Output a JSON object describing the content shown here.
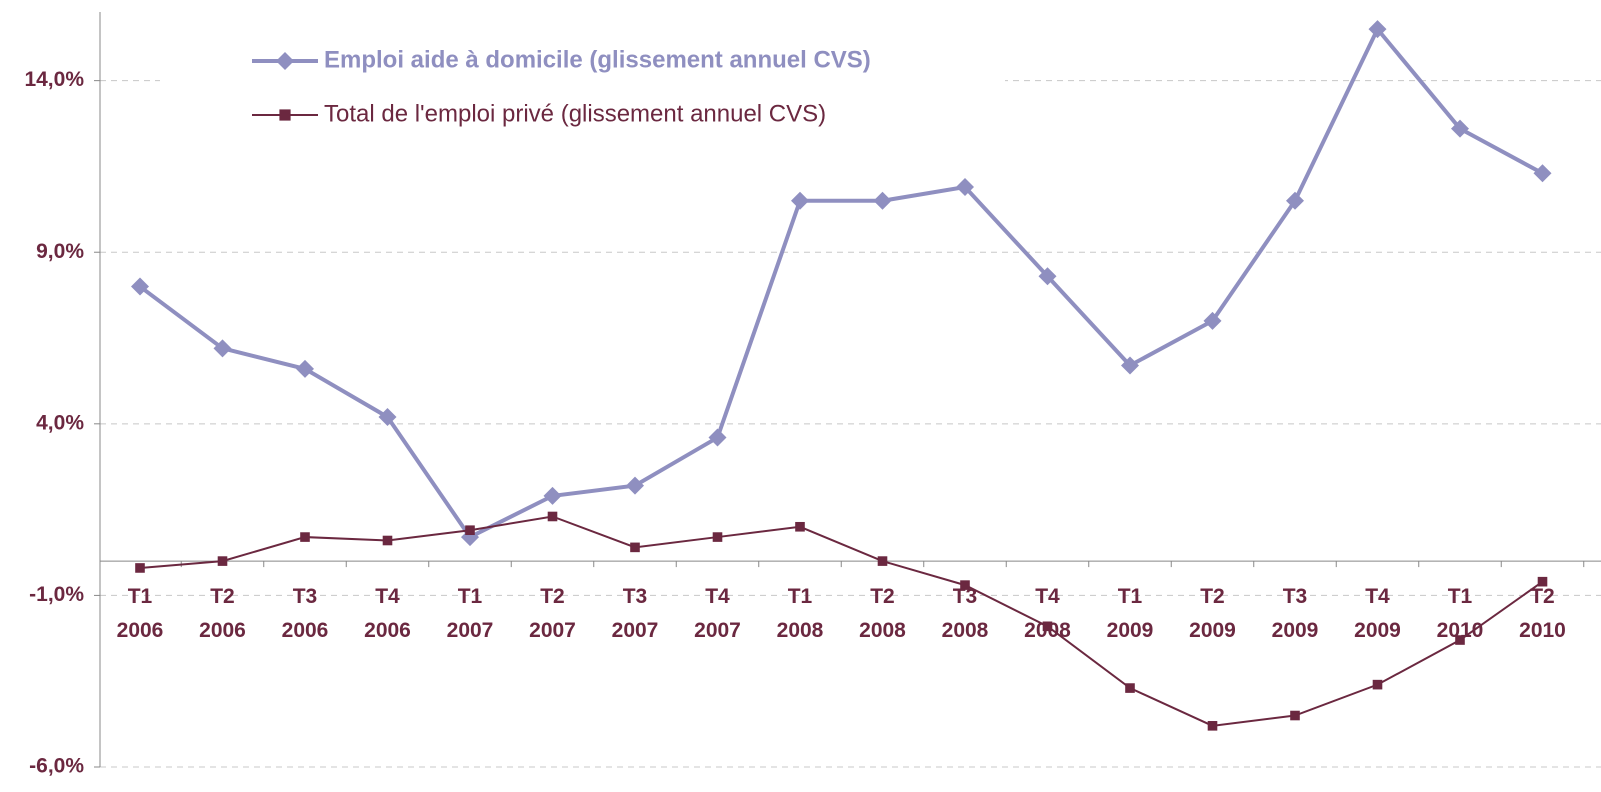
{
  "chart_data": {
    "type": "line",
    "categories": [
      [
        "T1",
        "2006"
      ],
      [
        "T2",
        "2006"
      ],
      [
        "T3",
        "2006"
      ],
      [
        "T4",
        "2006"
      ],
      [
        "T1",
        "2007"
      ],
      [
        "T2",
        "2007"
      ],
      [
        "T3",
        "2007"
      ],
      [
        "T4",
        "2007"
      ],
      [
        "T1",
        "2008"
      ],
      [
        "T2",
        "2008"
      ],
      [
        "T3",
        "2008"
      ],
      [
        "T4",
        "2008"
      ],
      [
        "T1",
        "2009"
      ],
      [
        "T2",
        "2009"
      ],
      [
        "T3",
        "2009"
      ],
      [
        "T4",
        "2009"
      ],
      [
        "T1",
        "2010"
      ],
      [
        "T2",
        "2010"
      ]
    ],
    "series": [
      {
        "name": "Emploi aide à domicile (glissement annuel CVS)",
        "color": "#8f8fc0",
        "marker": "diamond",
        "values": [
          8.0,
          6.2,
          5.6,
          4.2,
          0.7,
          1.9,
          2.2,
          3.6,
          10.5,
          10.5,
          10.9,
          8.3,
          5.7,
          7.0,
          10.5,
          15.5,
          12.6,
          11.3
        ]
      },
      {
        "name": "Total de l'emploi privé (glissement annuel CVS)",
        "color": "#6b2840",
        "marker": "square",
        "values": [
          -0.2,
          0.0,
          0.7,
          0.6,
          0.9,
          1.3,
          0.4,
          0.7,
          1.0,
          0.0,
          -0.7,
          -1.9,
          -3.7,
          -4.8,
          -4.5,
          -3.6,
          -2.3,
          -0.6
        ]
      }
    ],
    "ylim": [
      -6,
      16
    ],
    "yticks": [
      {
        "value": -6,
        "label": "-6,0%"
      },
      {
        "value": -1,
        "label": "-1,0%"
      },
      {
        "value": 4,
        "label": "4,0%"
      },
      {
        "value": 9,
        "label": "9,0%"
      },
      {
        "value": 14,
        "label": "14,0%"
      }
    ],
    "grid": true,
    "legend": "upper left"
  }
}
